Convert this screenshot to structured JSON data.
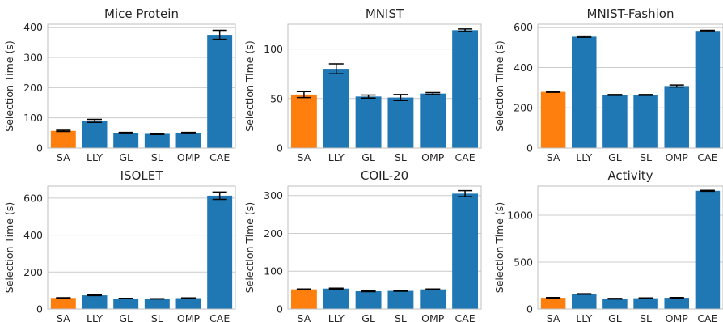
{
  "chart_data": [
    {
      "type": "bar",
      "title": "Mice Protein",
      "xlabel": "",
      "ylabel": "Selection Time (s)",
      "categories": [
        "SA",
        "LLY",
        "GL",
        "SL",
        "OMP",
        "CAE"
      ],
      "values": [
        57,
        90,
        50,
        47,
        50,
        375
      ],
      "errors": [
        2,
        5,
        2,
        2,
        2,
        15
      ],
      "ylim": [
        0,
        410
      ],
      "yticks": [
        0,
        100,
        200,
        300,
        400
      ],
      "grid": true
    },
    {
      "type": "bar",
      "title": "MNIST",
      "xlabel": "",
      "ylabel": "Selection Time (s)",
      "categories": [
        "SA",
        "LLY",
        "GL",
        "SL",
        "OMP",
        "CAE"
      ],
      "values": [
        54,
        80,
        52,
        51,
        55,
        119
      ],
      "errors": [
        3,
        5,
        1.5,
        3,
        1,
        1.2
      ],
      "ylim": [
        0,
        125
      ],
      "yticks": [
        0,
        50,
        100
      ],
      "grid": true
    },
    {
      "type": "bar",
      "title": "MNIST-Fashion",
      "xlabel": "",
      "ylabel": "Selection Time (s)",
      "categories": [
        "SA",
        "LLY",
        "GL",
        "SL",
        "OMP",
        "CAE"
      ],
      "values": [
        279,
        553,
        264,
        264,
        308,
        582
      ],
      "errors": [
        2,
        3,
        2,
        2,
        5,
        3
      ],
      "ylim": [
        0,
        615
      ],
      "yticks": [
        0,
        200,
        400,
        600
      ],
      "grid": true
    },
    {
      "type": "bar",
      "title": "ISOLET",
      "xlabel": "",
      "ylabel": "Selection Time (s)",
      "categories": [
        "SA",
        "LLY",
        "GL",
        "SL",
        "OMP",
        "CAE"
      ],
      "values": [
        60,
        74,
        57,
        55,
        59,
        613
      ],
      "errors": [
        1,
        1.5,
        1,
        1,
        1,
        20
      ],
      "ylim": [
        0,
        665
      ],
      "yticks": [
        0,
        200,
        400,
        600
      ],
      "grid": true
    },
    {
      "type": "bar",
      "title": "COIL-20",
      "xlabel": "",
      "ylabel": "Selection Time (s)",
      "categories": [
        "SA",
        "LLY",
        "GL",
        "SL",
        "OMP",
        "CAE"
      ],
      "values": [
        52,
        54,
        47,
        48,
        52,
        305
      ],
      "errors": [
        1,
        1,
        1,
        1,
        1,
        8
      ],
      "ylim": [
        0,
        325
      ],
      "yticks": [
        0,
        100,
        200,
        300
      ],
      "grid": true
    },
    {
      "type": "bar",
      "title": "Activity",
      "xlabel": "",
      "ylabel": "Selection Time (s)",
      "categories": [
        "SA",
        "LLY",
        "GL",
        "SL",
        "OMP",
        "CAE"
      ],
      "values": [
        120,
        160,
        110,
        115,
        120,
        1260
      ],
      "errors": [
        3,
        3,
        3,
        3,
        3,
        5
      ],
      "ylim": [
        0,
        1310
      ],
      "yticks": [
        0,
        500,
        1000
      ],
      "grid": true
    }
  ],
  "colors": {
    "highlight": "#ff7f0e",
    "default": "#1f77b4",
    "grid": "#cccccc",
    "axes": "#bfbfbf"
  }
}
